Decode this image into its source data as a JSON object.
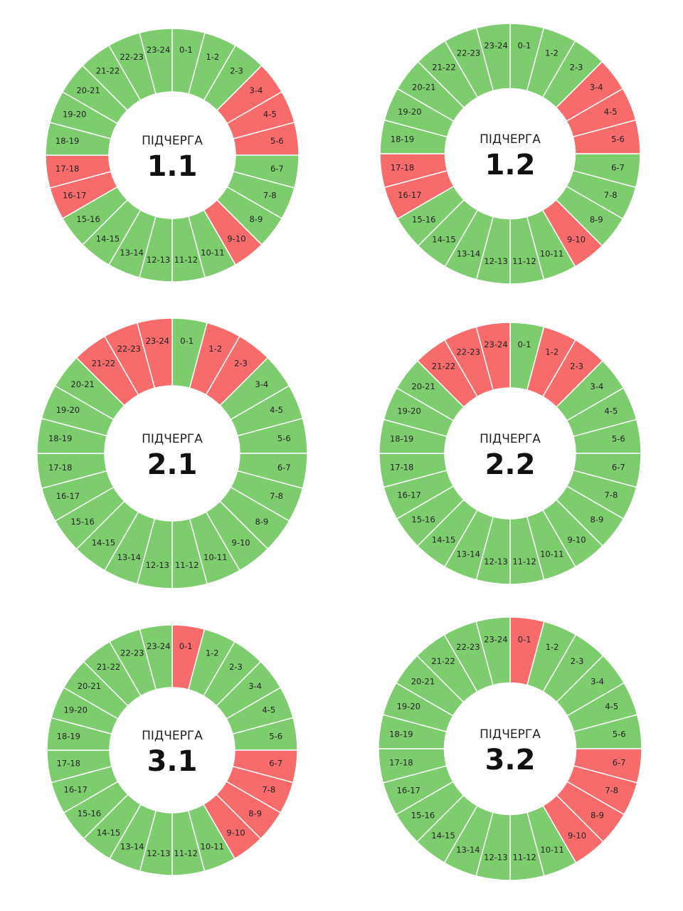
{
  "colors": {
    "on": "#7dcd6e",
    "off": "#f86b6b",
    "separator": "#ffffff"
  },
  "chart_data": [
    {
      "type": "pie",
      "caption": "ПІДЧЕРГА",
      "title": "1.1",
      "labels": [
        "0-1",
        "1-2",
        "2-3",
        "3-4",
        "4-5",
        "5-6",
        "6-7",
        "7-8",
        "8-9",
        "9-10",
        "10-11",
        "11-12",
        "12-13",
        "13-14",
        "14-15",
        "15-16",
        "16-17",
        "17-18",
        "18-19",
        "19-20",
        "20-21",
        "21-22",
        "22-23",
        "23-24"
      ],
      "off_hours": [
        "3-4",
        "4-5",
        "5-6",
        "9-10",
        "16-17",
        "17-18"
      ]
    },
    {
      "type": "pie",
      "caption": "ПІДЧЕРГА",
      "title": "1.2",
      "labels": [
        "0-1",
        "1-2",
        "2-3",
        "3-4",
        "4-5",
        "5-6",
        "6-7",
        "7-8",
        "8-9",
        "9-10",
        "10-11",
        "11-12",
        "12-13",
        "13-14",
        "14-15",
        "15-16",
        "16-17",
        "17-18",
        "18-19",
        "19-20",
        "20-21",
        "21-22",
        "22-23",
        "23-24"
      ],
      "off_hours": [
        "3-4",
        "4-5",
        "5-6",
        "9-10",
        "16-17",
        "17-18"
      ]
    },
    {
      "type": "pie",
      "caption": "ПІДЧЕРГА",
      "title": "2.1",
      "labels": [
        "0-1",
        "1-2",
        "2-3",
        "3-4",
        "4-5",
        "5-6",
        "6-7",
        "7-8",
        "8-9",
        "9-10",
        "10-11",
        "11-12",
        "12-13",
        "13-14",
        "14-15",
        "15-16",
        "16-17",
        "17-18",
        "18-19",
        "19-20",
        "20-21",
        "21-22",
        "22-23",
        "23-24"
      ],
      "off_hours": [
        "1-2",
        "2-3",
        "21-22",
        "22-23",
        "23-24"
      ]
    },
    {
      "type": "pie",
      "caption": "ПІДЧЕРГА",
      "title": "2.2",
      "labels": [
        "0-1",
        "1-2",
        "2-3",
        "3-4",
        "4-5",
        "5-6",
        "6-7",
        "7-8",
        "8-9",
        "9-10",
        "10-11",
        "11-12",
        "12-13",
        "13-14",
        "14-15",
        "15-16",
        "16-17",
        "17-18",
        "18-19",
        "19-20",
        "20-21",
        "21-22",
        "22-23",
        "23-24"
      ],
      "off_hours": [
        "1-2",
        "2-3",
        "21-22",
        "22-23",
        "23-24"
      ]
    },
    {
      "type": "pie",
      "caption": "ПІДЧЕРГА",
      "title": "3.1",
      "labels": [
        "0-1",
        "1-2",
        "2-3",
        "3-4",
        "4-5",
        "5-6",
        "6-7",
        "7-8",
        "8-9",
        "9-10",
        "10-11",
        "11-12",
        "12-13",
        "13-14",
        "14-15",
        "15-16",
        "16-17",
        "17-18",
        "18-19",
        "19-20",
        "20-21",
        "21-22",
        "22-23",
        "23-24"
      ],
      "off_hours": [
        "0-1",
        "6-7",
        "7-8",
        "8-9",
        "9-10"
      ]
    },
    {
      "type": "pie",
      "caption": "ПІДЧЕРГА",
      "title": "3.2",
      "labels": [
        "0-1",
        "1-2",
        "2-3",
        "3-4",
        "4-5",
        "5-6",
        "6-7",
        "7-8",
        "8-9",
        "9-10",
        "10-11",
        "11-12",
        "12-13",
        "13-14",
        "14-15",
        "15-16",
        "16-17",
        "17-18",
        "18-19",
        "19-20",
        "20-21",
        "21-22",
        "22-23",
        "23-24"
      ],
      "off_hours": [
        "0-1",
        "6-7",
        "7-8",
        "8-9",
        "9-10"
      ]
    }
  ]
}
